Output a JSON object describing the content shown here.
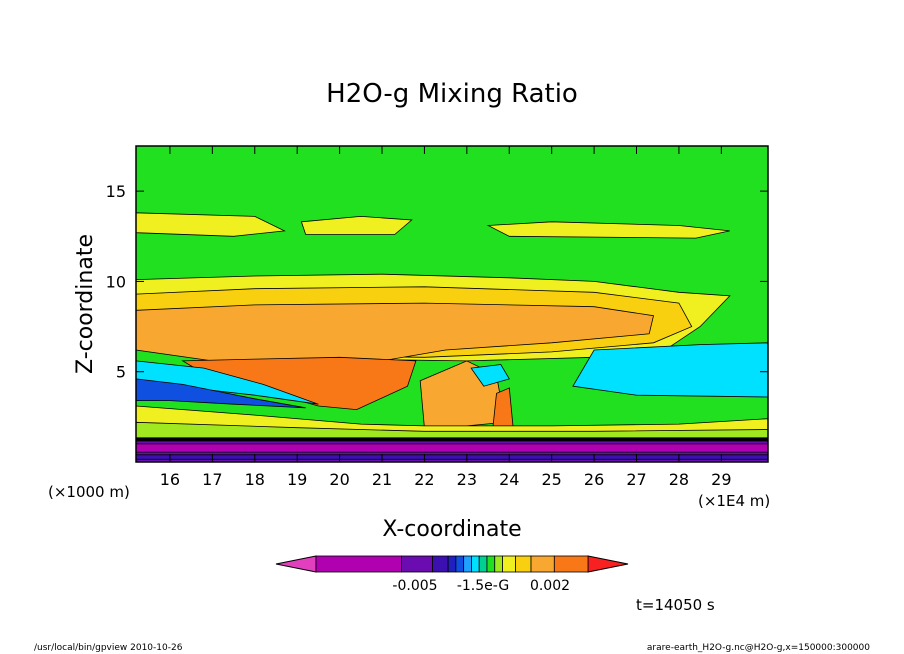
{
  "chart_data": {
    "type": "heatmap",
    "title": "H2O-g Mixing Ratio",
    "xlabel": "X-coordinate",
    "ylabel": "Z-coordinate",
    "x_unit_label": "(×1E4 m)",
    "y_unit_label": "(×1000 m)",
    "xlim": [
      15.2,
      30.1
    ],
    "ylim": [
      0,
      17.5
    ],
    "x_ticks": [
      16,
      17,
      18,
      19,
      20,
      21,
      22,
      23,
      24,
      25,
      26,
      27,
      28,
      29
    ],
    "y_ticks": [
      5,
      10,
      15
    ],
    "colorbar": {
      "colors": [
        "#e23fbe",
        "#b000b0",
        "#6a0cb0",
        "#3c10b0",
        "#2020c0",
        "#1050e0",
        "#20a0ff",
        "#00e0ff",
        "#00d090",
        "#20e020",
        "#a0e820",
        "#f0f020",
        "#f8d010",
        "#f8a830",
        "#f87818",
        "#f82020"
      ],
      "tick_labels": [
        "-0.005",
        "-1.5e-G",
        "0.002"
      ]
    },
    "regions": [
      {
        "name": "upper yellow band",
        "fill": "#f0f020",
        "points": [
          [
            15.2,
            13.8
          ],
          [
            18,
            13.6
          ],
          [
            18.7,
            12.8
          ],
          [
            17.5,
            12.5
          ],
          [
            15.2,
            12.7
          ]
        ]
      },
      {
        "name": "upper yellow band 2",
        "fill": "#f0f020",
        "points": [
          [
            19.1,
            13.3
          ],
          [
            20.5,
            13.6
          ],
          [
            21.7,
            13.4
          ],
          [
            21.3,
            12.6
          ],
          [
            19.2,
            12.6
          ]
        ]
      },
      {
        "name": "upper yellow band 3",
        "fill": "#f0f020",
        "points": [
          [
            23.5,
            13.1
          ],
          [
            25,
            13.3
          ],
          [
            28,
            13.1
          ],
          [
            29.2,
            12.8
          ],
          [
            28.4,
            12.4
          ],
          [
            24,
            12.5
          ]
        ]
      },
      {
        "name": "mid yellow layer",
        "fill": "#f0f020",
        "points": [
          [
            15.2,
            10.1
          ],
          [
            18,
            10.3
          ],
          [
            21,
            10.4
          ],
          [
            24,
            10.2
          ],
          [
            26,
            10
          ],
          [
            28,
            9.4
          ],
          [
            29.2,
            9.2
          ],
          [
            28.5,
            7.5
          ],
          [
            27.8,
            6.4
          ],
          [
            26,
            5.8
          ],
          [
            23,
            5.6
          ],
          [
            20,
            5.7
          ],
          [
            17,
            6
          ],
          [
            15.2,
            6.4
          ]
        ]
      },
      {
        "name": "light orange layer",
        "fill": "#f8d010",
        "points": [
          [
            15.2,
            9.3
          ],
          [
            18,
            9.6
          ],
          [
            22,
            9.7
          ],
          [
            26,
            9.4
          ],
          [
            28,
            8.8
          ],
          [
            28.3,
            7.5
          ],
          [
            27.4,
            6.6
          ],
          [
            25,
            6.1
          ],
          [
            22,
            5.8
          ],
          [
            19,
            5.9
          ],
          [
            16.5,
            6.2
          ],
          [
            15.2,
            6.6
          ]
        ]
      },
      {
        "name": "orange layer",
        "fill": "#f8a830",
        "points": [
          [
            15.2,
            8.4
          ],
          [
            18,
            8.7
          ],
          [
            22,
            8.8
          ],
          [
            26,
            8.6
          ],
          [
            27.4,
            8.1
          ],
          [
            27.3,
            7.1
          ],
          [
            25,
            6.6
          ],
          [
            22.5,
            6.2
          ],
          [
            21,
            5.6
          ],
          [
            19,
            5.4
          ],
          [
            17,
            5.6
          ],
          [
            15.2,
            6.2
          ]
        ]
      },
      {
        "name": "core orange",
        "fill": "#f87818",
        "points": [
          [
            16.3,
            5.6
          ],
          [
            18,
            5.7
          ],
          [
            20,
            5.8
          ],
          [
            21.8,
            5.6
          ],
          [
            21.6,
            4.2
          ],
          [
            20.4,
            2.9
          ],
          [
            19.5,
            3.1
          ],
          [
            18,
            4.1
          ],
          [
            16.8,
            4.9
          ]
        ]
      },
      {
        "name": "plume tower",
        "fill": "#f8a830",
        "points": [
          [
            21.9,
            4.5
          ],
          [
            22.6,
            5.2
          ],
          [
            23,
            5.6
          ],
          [
            23.7,
            4.8
          ],
          [
            23.9,
            2.2
          ],
          [
            23,
            2
          ],
          [
            22,
            1.9
          ]
        ]
      },
      {
        "name": "right plume",
        "fill": "#f87818",
        "points": [
          [
            23.7,
            3.8
          ],
          [
            24,
            4.1
          ],
          [
            24.1,
            1.7
          ],
          [
            23.6,
            1.6
          ]
        ]
      },
      {
        "name": "cyan right region",
        "fill": "#00e0ff",
        "points": [
          [
            26,
            6.2
          ],
          [
            28.5,
            6.5
          ],
          [
            30.1,
            6.6
          ],
          [
            30.1,
            3.6
          ],
          [
            27,
            3.7
          ],
          [
            25.5,
            4.2
          ]
        ]
      },
      {
        "name": "cyan left tongue",
        "fill": "#00e0ff",
        "points": [
          [
            15.2,
            5.6
          ],
          [
            16.8,
            5.2
          ],
          [
            18.2,
            4.3
          ],
          [
            19.5,
            3.2
          ],
          [
            18,
            3.7
          ],
          [
            16.5,
            4.1
          ],
          [
            15.2,
            4.2
          ]
        ]
      },
      {
        "name": "blue left tongue",
        "fill": "#1050e0",
        "points": [
          [
            15.2,
            4.6
          ],
          [
            16.3,
            4.3
          ],
          [
            18,
            3.5
          ],
          [
            19.2,
            3
          ],
          [
            17.5,
            3.2
          ],
          [
            16,
            3.4
          ],
          [
            15.2,
            3.4
          ]
        ]
      },
      {
        "name": "plume cyan",
        "fill": "#00e0ff",
        "points": [
          [
            23.1,
            5.2
          ],
          [
            23.8,
            5.4
          ],
          [
            24,
            4.6
          ],
          [
            23.4,
            4.2
          ]
        ]
      },
      {
        "name": "lower yellow band",
        "fill": "#f0f020",
        "points": [
          [
            15.2,
            3.1
          ],
          [
            18,
            2.6
          ],
          [
            20.5,
            2.1
          ],
          [
            22,
            2
          ],
          [
            25,
            2
          ],
          [
            28,
            2.1
          ],
          [
            30.1,
            2.4
          ],
          [
            30.1,
            1.2
          ],
          [
            15.2,
            1.2
          ]
        ]
      },
      {
        "name": "lower green band",
        "fill": "#a0e820",
        "points": [
          [
            15.2,
            2.2
          ],
          [
            19,
            1.9
          ],
          [
            22,
            1.7
          ],
          [
            26,
            1.7
          ],
          [
            30.1,
            1.8
          ],
          [
            30.1,
            1.2
          ],
          [
            15.2,
            1.2
          ]
        ]
      },
      {
        "name": "surface purple",
        "fill": "#6a0cb0",
        "points": [
          [
            15.2,
            1.3
          ],
          [
            30.1,
            1.3
          ],
          [
            30.1,
            0
          ],
          [
            15.2,
            0
          ]
        ]
      },
      {
        "name": "surface magenta",
        "fill": "#b000b0",
        "points": [
          [
            15.2,
            1
          ],
          [
            30.1,
            1
          ],
          [
            30.1,
            0.55
          ],
          [
            15.2,
            0.55
          ]
        ]
      },
      {
        "name": "surface blue",
        "fill": "#3c10b0",
        "points": [
          [
            15.2,
            0.4
          ],
          [
            30.1,
            0.4
          ],
          [
            30.1,
            0.15
          ],
          [
            15.2,
            0.15
          ]
        ]
      }
    ],
    "background_fill": "#20e020",
    "surface_line_y": 1.25
  },
  "annotations": {
    "time": "t=14050 s",
    "path": "/usr/local/bin/gpview  2010-10-26",
    "source": "arare-earth_H2O-g.nc@H2O-g,x=150000:300000"
  }
}
